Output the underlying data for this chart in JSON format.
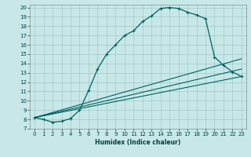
{
  "xlabel": "Humidex (Indice chaleur)",
  "bg_color": "#c8e8e8",
  "grid_color": "#a0c8c8",
  "line_color": "#006060",
  "xlim": [
    -0.5,
    23.5
  ],
  "ylim": [
    7,
    20.3
  ],
  "xticks": [
    0,
    1,
    2,
    3,
    4,
    5,
    6,
    7,
    8,
    9,
    10,
    11,
    12,
    13,
    14,
    15,
    16,
    17,
    18,
    19,
    20,
    21,
    22,
    23
  ],
  "yticks": [
    7,
    8,
    9,
    10,
    11,
    12,
    13,
    14,
    15,
    16,
    17,
    18,
    19,
    20
  ],
  "main_x": [
    0,
    1,
    2,
    3,
    4,
    5,
    6,
    7,
    8,
    9,
    10,
    11,
    12,
    13,
    14,
    15,
    16,
    17,
    18,
    19,
    20,
    21,
    22,
    23
  ],
  "main_y": [
    8.2,
    8.0,
    7.7,
    7.8,
    8.1,
    9.0,
    11.1,
    13.4,
    15.0,
    16.0,
    17.0,
    17.5,
    18.5,
    19.1,
    19.9,
    20.0,
    19.9,
    19.5,
    19.2,
    18.8,
    14.7,
    13.8,
    13.1,
    12.6
  ],
  "fan_lines": [
    {
      "x": [
        0,
        23
      ],
      "y": [
        8.2,
        12.6
      ]
    },
    {
      "x": [
        0,
        23
      ],
      "y": [
        8.2,
        13.4
      ]
    },
    {
      "x": [
        0,
        23
      ],
      "y": [
        8.2,
        14.5
      ]
    }
  ]
}
